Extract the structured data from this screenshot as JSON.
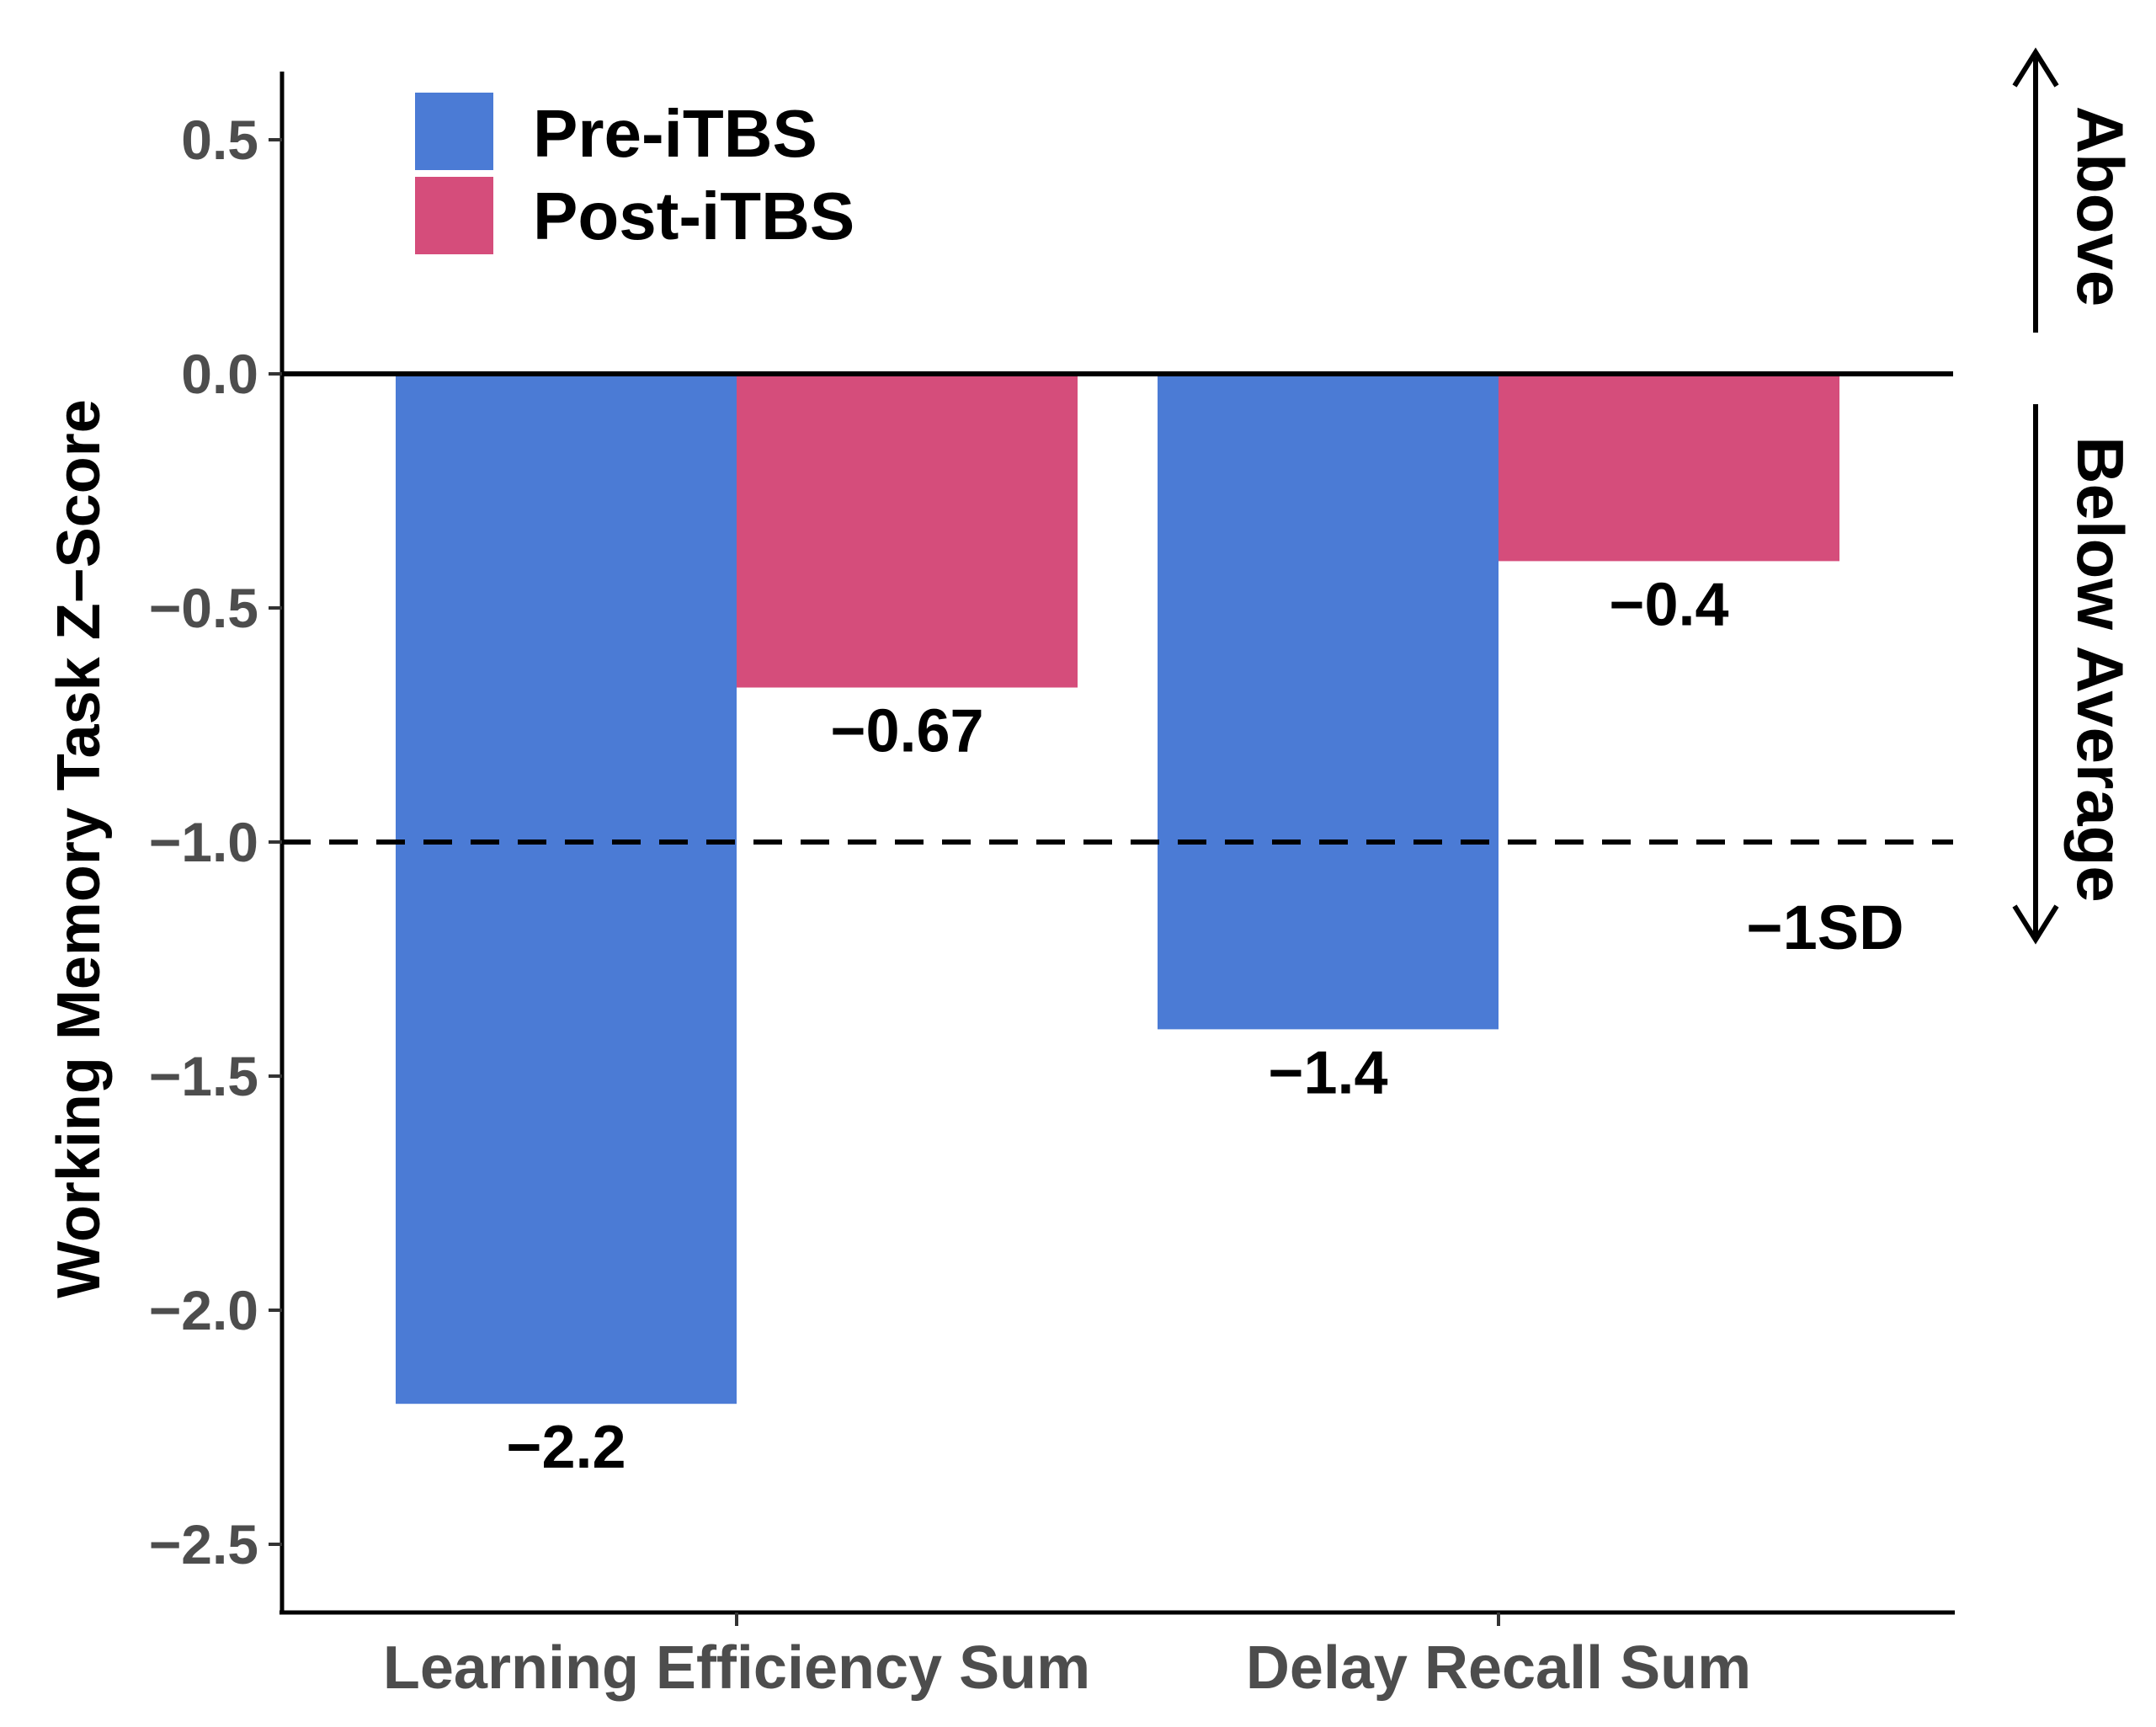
{
  "chart_data": {
    "type": "bar",
    "title": "",
    "xlabel": "",
    "ylabel": "Working Memory Task Z−Score",
    "ylim": [
      -2.65,
      0.65
    ],
    "yticks": [
      {
        "value": 0.5,
        "label": "0.5"
      },
      {
        "value": 0.0,
        "label": "0.0"
      },
      {
        "value": -0.5,
        "label": "−0.5"
      },
      {
        "value": -1.0,
        "label": "−1.0"
      },
      {
        "value": -1.5,
        "label": "−1.5"
      },
      {
        "value": -2.0,
        "label": "−2.0"
      },
      {
        "value": -2.5,
        "label": "−2.5"
      }
    ],
    "categories": [
      "Learning Efficiency Sum",
      "Delay Recall Sum"
    ],
    "series": [
      {
        "name": "Pre-iTBS",
        "color": "#4B7BD5",
        "values": [
          -2.2,
          -1.4
        ],
        "labels": [
          "−2.2",
          "−1.4"
        ]
      },
      {
        "name": "Post-iTBS",
        "color": "#D54D7B",
        "values": [
          -0.67,
          -0.4
        ],
        "labels": [
          "−0.67",
          "−0.4"
        ]
      }
    ],
    "reference_lines": [
      {
        "value": 0.0,
        "style": "solid"
      },
      {
        "value": -1.0,
        "style": "dashed",
        "label": "−1SD"
      }
    ],
    "legend": {
      "position": "top-left",
      "entries": [
        "Pre-iTBS",
        "Post-iTBS"
      ]
    },
    "side_annotations": {
      "above": "Above",
      "below": "Below Average"
    }
  }
}
